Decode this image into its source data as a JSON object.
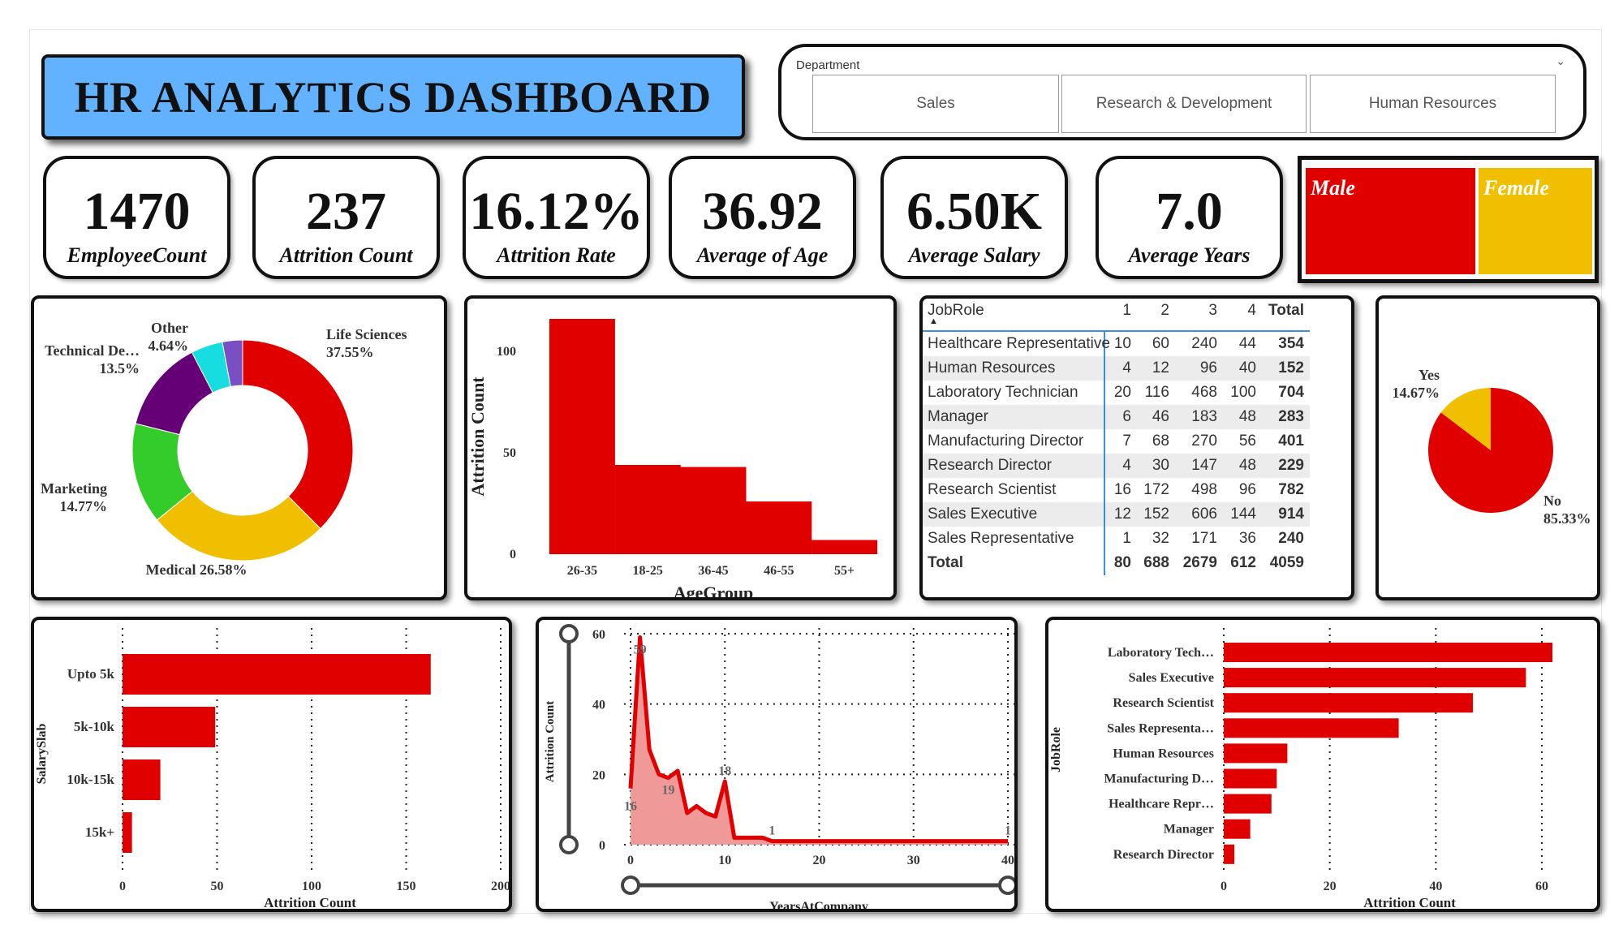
{
  "header": {
    "title": "HR ANALYTICS DASHBOARD"
  },
  "slicer": {
    "label": "Department",
    "options": [
      "Sales",
      "Research & Development",
      "Human Resources"
    ]
  },
  "kpis": [
    {
      "value": "1470",
      "label": "EmployeeCount"
    },
    {
      "value": "237",
      "label": "Attrition Count"
    },
    {
      "value": "16.12%",
      "label": "Attrition Rate"
    },
    {
      "value": "36.92",
      "label": "Average of Age"
    },
    {
      "value": "6.50K",
      "label": "Average Salary"
    },
    {
      "value": "7.0",
      "label": "Average Years"
    }
  ],
  "gender": {
    "male": "Male",
    "female": "Female",
    "male_color": "#e00000",
    "female_color": "#f0c000"
  },
  "colors": {
    "accent": "#e00000",
    "title_bg": "#63b2ff"
  },
  "table": {
    "header": [
      "JobRole",
      "1",
      "2",
      "3",
      "4",
      "Total"
    ],
    "rows": [
      [
        "Healthcare Representative",
        "10",
        "60",
        "240",
        "44",
        "354"
      ],
      [
        "Human Resources",
        "4",
        "12",
        "96",
        "40",
        "152"
      ],
      [
        "Laboratory Technician",
        "20",
        "116",
        "468",
        "100",
        "704"
      ],
      [
        "Manager",
        "6",
        "46",
        "183",
        "48",
        "283"
      ],
      [
        "Manufacturing Director",
        "7",
        "68",
        "270",
        "56",
        "401"
      ],
      [
        "Research Director",
        "4",
        "30",
        "147",
        "48",
        "229"
      ],
      [
        "Research Scientist",
        "16",
        "172",
        "498",
        "96",
        "782"
      ],
      [
        "Sales Executive",
        "12",
        "152",
        "606",
        "144",
        "914"
      ],
      [
        "Sales Representative",
        "1",
        "32",
        "171",
        "36",
        "240"
      ]
    ],
    "total": [
      "Total",
      "80",
      "688",
      "2679",
      "612",
      "4059"
    ]
  },
  "chart_data": [
    {
      "type": "pie",
      "donut": true,
      "categories": [
        "Life Sciences",
        "Medical",
        "Marketing",
        "Technical De…",
        "Other",
        ""
      ],
      "values": [
        37.55,
        26.58,
        14.77,
        13.5,
        4.64,
        2.96
      ],
      "labels": [
        "37.55%",
        "26.58%",
        "14.77%",
        "13.5%",
        "4.64%",
        ""
      ],
      "colors": [
        "#e00000",
        "#f0c000",
        "#33cc2b",
        "#660077",
        "#17dce0",
        "#7b4fc4"
      ]
    },
    {
      "type": "bar",
      "categories": [
        "26-35",
        "18-25",
        "36-45",
        "46-55",
        "55+"
      ],
      "values": [
        116,
        44,
        43,
        26,
        7
      ],
      "xlabel": "AgeGroup",
      "ylabel": "Attrition Count",
      "ylim": [
        0,
        116
      ],
      "yticks": [
        0,
        50,
        100
      ]
    },
    {
      "type": "pie",
      "categories": [
        "Yes",
        "No"
      ],
      "values": [
        14.67,
        85.33
      ],
      "labels": [
        "14.67%",
        "85.33%"
      ],
      "colors": [
        "#f0c000",
        "#e00000"
      ]
    },
    {
      "type": "bar",
      "orientation": "horizontal",
      "categories": [
        "Upto 5k",
        "5k-10k",
        "10k-15k",
        "15k+"
      ],
      "values": [
        163,
        49,
        20,
        5
      ],
      "xlabel": "Attrition Count",
      "ylabel": "SalarySlab",
      "xlim": [
        0,
        200
      ],
      "xticks": [
        0,
        50,
        100,
        150,
        200
      ],
      "grid": true
    },
    {
      "type": "area",
      "x": [
        0,
        1,
        2,
        3,
        4,
        5,
        6,
        7,
        8,
        9,
        10,
        11,
        12,
        13,
        14,
        15,
        20,
        25,
        30,
        35,
        40
      ],
      "values": [
        16,
        59,
        27,
        20,
        19,
        21,
        9,
        11,
        9,
        8,
        18,
        2,
        2,
        2,
        2,
        1,
        1,
        1,
        1,
        1,
        1
      ],
      "data_labels": {
        "0": "16",
        "1": "59",
        "4": "19",
        "10": "18",
        "15": "1",
        "40": "1"
      },
      "xlabel": "YearsAtCompany",
      "ylabel": "Attrition Count",
      "xlim": [
        0,
        40
      ],
      "ylim": [
        0,
        60
      ],
      "xticks": [
        0,
        10,
        20,
        30,
        40
      ],
      "yticks": [
        0,
        20,
        40,
        60
      ],
      "grid": true
    },
    {
      "type": "bar",
      "orientation": "horizontal",
      "categories": [
        "Laboratory Tech…",
        "Sales Executive",
        "Research Scientist",
        "Sales Representa…",
        "Human Resources",
        "Manufacturing D…",
        "Healthcare Repr…",
        "Manager",
        "Research Director"
      ],
      "values": [
        62,
        57,
        47,
        33,
        12,
        10,
        9,
        5,
        2
      ],
      "xlabel": "Attrition Count",
      "ylabel": "JobRole",
      "xlim": [
        0,
        62
      ],
      "xticks": [
        0,
        20,
        40,
        60
      ],
      "grid": true
    }
  ]
}
